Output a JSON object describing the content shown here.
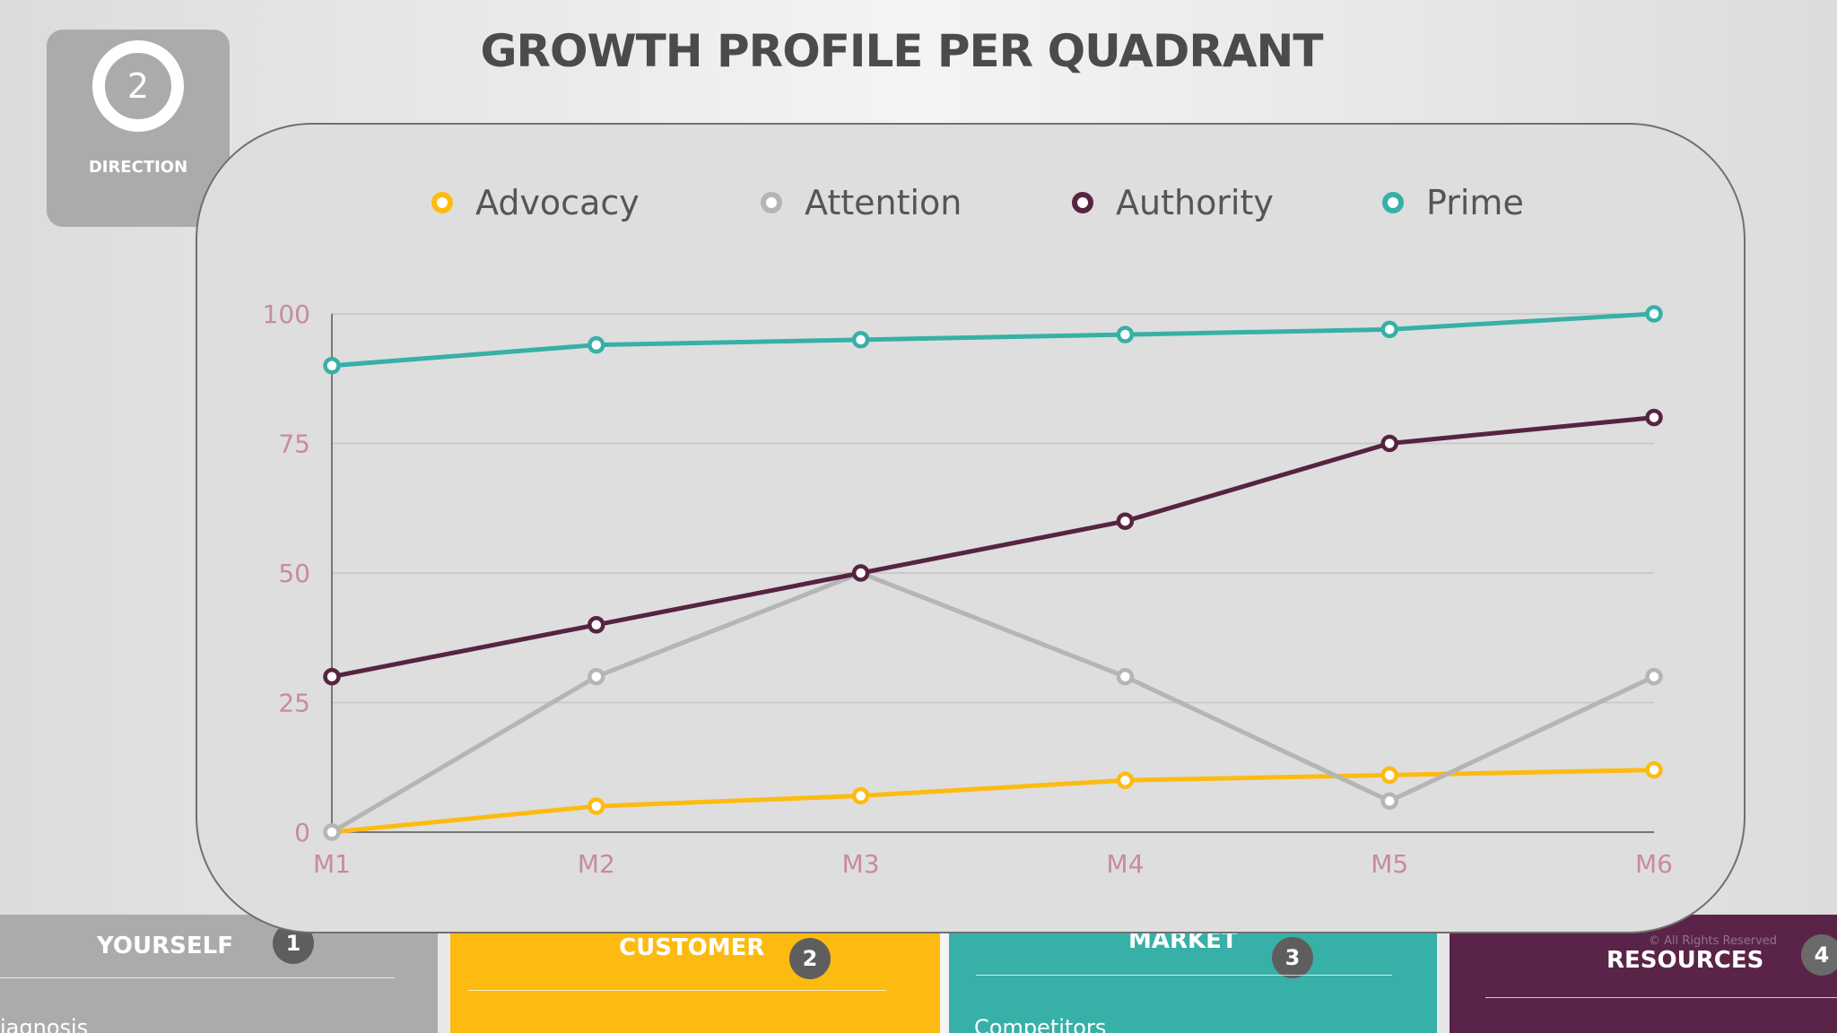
{
  "title": "GROWTH PROFILE PER QUADRANT",
  "badge": {
    "number": "2",
    "label": "DIRECTION"
  },
  "panels": [
    {
      "title": "YOURSELF",
      "number": "1",
      "subtext": "iagnosis",
      "color": "#ababab"
    },
    {
      "title": "CUSTOMER",
      "number": "2",
      "subtext": "",
      "color": "#fdbb11"
    },
    {
      "title": "MARKET",
      "number": "3",
      "subtext": "Competitors",
      "color": "#37b0a7"
    },
    {
      "title": "RESOURCES",
      "number": "4",
      "subtext": "",
      "color": "#5a2448"
    }
  ],
  "copyright": "© All Rights Reserved",
  "chart_data": {
    "type": "line",
    "title": "",
    "xlabel": "",
    "ylabel": "",
    "categories": [
      "M1",
      "M2",
      "M3",
      "M4",
      "M5",
      "M6"
    ],
    "ylim": [
      0,
      100
    ],
    "yticks": [
      "0",
      "25",
      "50",
      "75",
      "100"
    ],
    "grid": true,
    "legend": "top",
    "series": [
      {
        "name": "Advocacy",
        "color": "#fdbb11",
        "values": [
          0,
          5,
          7,
          10,
          11,
          12
        ]
      },
      {
        "name": "Attention",
        "color": "#b5b5b5",
        "values": [
          0,
          30,
          50,
          30,
          6,
          30
        ]
      },
      {
        "name": "Authority",
        "color": "#562440",
        "values": [
          30,
          40,
          50,
          60,
          75,
          80
        ]
      },
      {
        "name": "Prime",
        "color": "#37b0a7",
        "values": [
          90,
          94,
          95,
          96,
          97,
          100
        ]
      }
    ]
  }
}
